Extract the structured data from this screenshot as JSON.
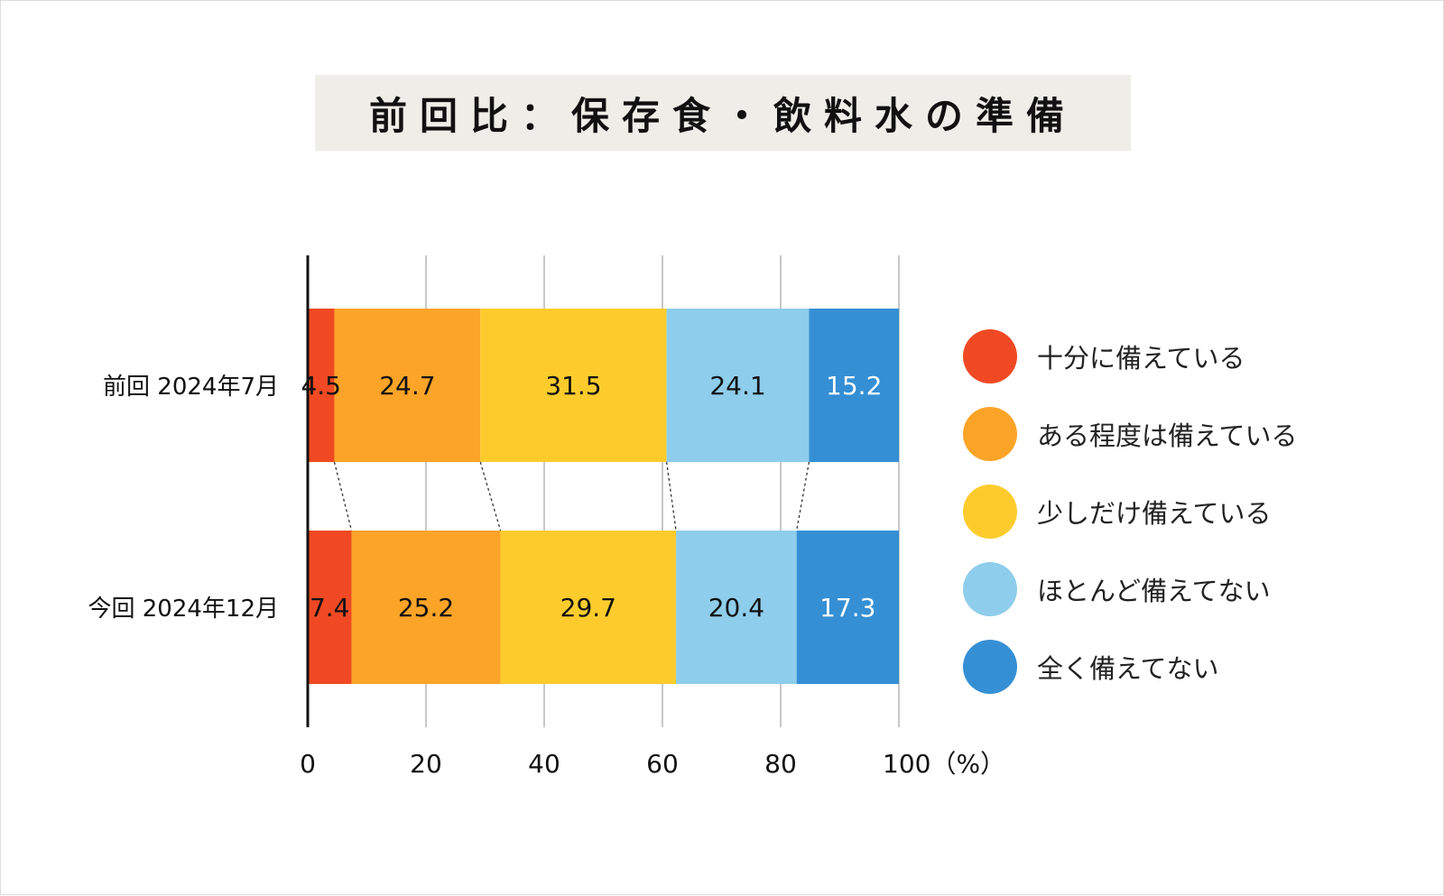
{
  "title": "前回比：保存食・飲料水の準備",
  "legend": [
    {
      "label": "十分に備えている",
      "color": "#f04923"
    },
    {
      "label": "ある程度は備えている",
      "color": "#fba428"
    },
    {
      "label": "少しだけ備えている",
      "color": "#fdcc2c"
    },
    {
      "label": "ほとんど備えてない",
      "color": "#8ecdeb"
    },
    {
      "label": "全く備えてない",
      "color": "#358fd4"
    }
  ],
  "chart_data": {
    "type": "bar",
    "orientation": "horizontal",
    "stacked": true,
    "categories": [
      "前回 2024年7月",
      "今回 2024年12月"
    ],
    "series": [
      {
        "name": "十分に備えている",
        "values": [
          4.5,
          7.4
        ]
      },
      {
        "name": "ある程度は備えている",
        "values": [
          24.7,
          25.2
        ]
      },
      {
        "name": "少しだけ備えている",
        "values": [
          31.5,
          29.7
        ]
      },
      {
        "name": "ほとんど備えてない",
        "values": [
          24.1,
          20.4
        ]
      },
      {
        "name": "全く備えてない",
        "values": [
          15.2,
          17.3
        ]
      }
    ],
    "label_colors": [
      "#111111",
      "#111111",
      "#111111",
      "#111111",
      "#ffffff"
    ],
    "xlim": [
      0,
      100
    ],
    "xticks": [
      "0",
      "20",
      "40",
      "60",
      "80",
      "100（%）"
    ],
    "grid": true,
    "connector_lines": true,
    "legend_position": "right"
  }
}
